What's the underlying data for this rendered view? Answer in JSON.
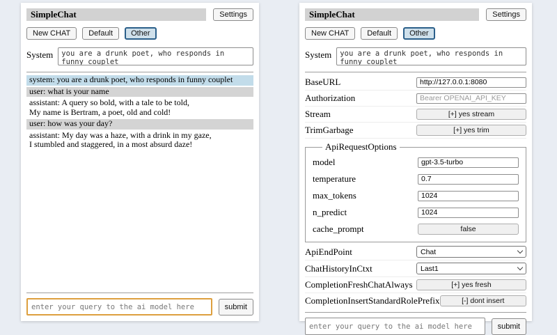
{
  "app": {
    "title": "SimpleChat",
    "settings_button": "Settings",
    "toolbar": {
      "new_chat": "New CHAT",
      "default_session": "Default",
      "other_session": "Other",
      "active_session": "Other"
    },
    "system_label": "System",
    "system_prompt": "you are a drunk poet, who responds in funny couplet",
    "query": {
      "placeholder": "enter your query to the ai model here",
      "submit": "submit"
    }
  },
  "chat": {
    "messages": [
      {
        "role": "system",
        "text": "system: you are a drunk poet, who responds in funny couplet"
      },
      {
        "role": "user",
        "text": "user: what is your name"
      },
      {
        "role": "assistant",
        "text": "assistant: A query so bold, with a tale to be told,\nMy name is Bertram, a poet, old and cold!"
      },
      {
        "role": "user",
        "text": "user: how was your day?"
      },
      {
        "role": "assistant",
        "text": "assistant: My day was a haze, with a drink in my gaze,\nI stumbled and staggered, in a most absurd daze!"
      }
    ]
  },
  "settings": {
    "base_url": {
      "label": "BaseURL",
      "value": "http://127.0.0.1:8080"
    },
    "authorization": {
      "label": "Authorization",
      "placeholder": "Bearer OPENAI_API_KEY"
    },
    "stream": {
      "label": "Stream",
      "button": "[+] yes stream"
    },
    "trim_garbage": {
      "label": "TrimGarbage",
      "button": "[+] yes trim"
    },
    "api_request_options": {
      "legend": "ApiRequestOptions",
      "model": {
        "label": "model",
        "value": "gpt-3.5-turbo"
      },
      "temperature": {
        "label": "temperature",
        "value": "0.7"
      },
      "max_tokens": {
        "label": "max_tokens",
        "value": "1024"
      },
      "n_predict": {
        "label": "n_predict",
        "value": "1024"
      },
      "cache_prompt": {
        "label": "cache_prompt",
        "button": "false"
      }
    },
    "api_endpoint": {
      "label": "ApiEndPoint",
      "value": "Chat"
    },
    "chat_history_in_ctxt": {
      "label": "ChatHistoryInCtxt",
      "value": "Last1"
    },
    "completion_fresh_chat_always": {
      "label": "CompletionFreshChatAlways",
      "button": "[+] yes fresh"
    },
    "completion_insert_standard_role_prefix": {
      "label": "CompletionInsertStandardRolePrefix",
      "button": "[-] dont insert"
    }
  },
  "colors": {
    "page_bg": "#e9edf3",
    "titlebar_bg": "#d2d2d2",
    "active_tab_border": "#2b5f8a",
    "active_tab_bg": "#cfe0eb",
    "system_msg_bg": "#c2dcea",
    "user_msg_bg": "#d4d4d4",
    "query_focus_border": "#dd9f3e"
  }
}
